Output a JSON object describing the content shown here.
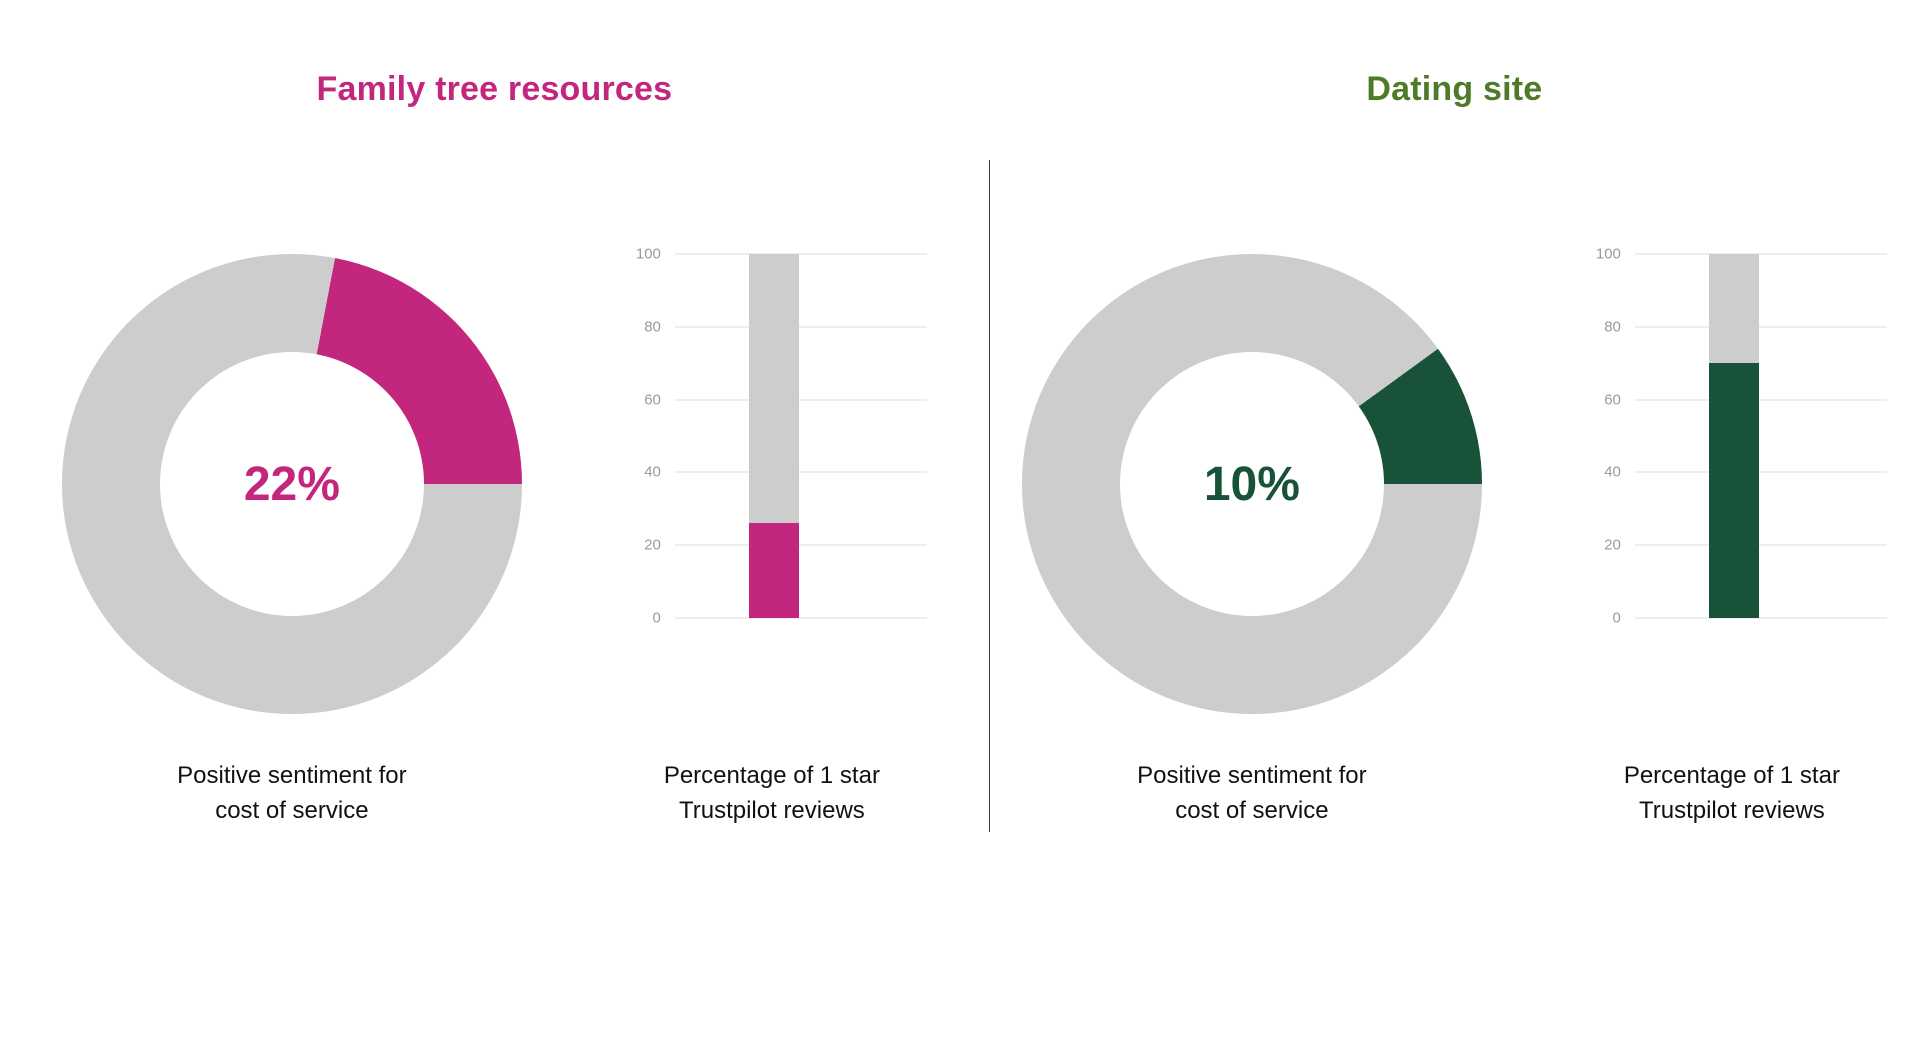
{
  "layout": {
    "background": "#ffffff",
    "divider_color": "#3d3d3d",
    "gridline_color": "#dcdcdc",
    "tick_label_color": "#9a9a9a",
    "caption_color": "#111111",
    "track_color": "#cdcdcd"
  },
  "panels": [
    {
      "title": "Family tree resources",
      "title_color": "#c2277d"
    },
    {
      "title": "Dating site",
      "title_color": "#4f7a28"
    }
  ],
  "chart_data": [
    {
      "type": "pie",
      "variant": "donut",
      "group": "Family tree resources",
      "caption_lines": [
        "Positive sentiment for",
        "cost of service"
      ],
      "center_label": "22%",
      "labels": [
        "Positive sentiment",
        "Remainder"
      ],
      "values": [
        22,
        78
      ],
      "colors": [
        "#c2277d",
        "#cdcdcd"
      ]
    },
    {
      "type": "bar",
      "group": "Family tree resources",
      "caption_lines": [
        "Percentage of 1 star",
        "Trustpilot reviews"
      ],
      "categories": [
        "1 star Trustpilot reviews"
      ],
      "values": [
        26
      ],
      "ylim": [
        0,
        100
      ],
      "yticks": [
        0,
        20,
        40,
        60,
        80,
        100
      ],
      "grid": true,
      "bar_color": "#c2277d",
      "track_color": "#cdcdcd"
    },
    {
      "type": "pie",
      "variant": "donut",
      "group": "Dating site",
      "caption_lines": [
        "Positive sentiment for",
        "cost of service"
      ],
      "center_label": "10%",
      "labels": [
        "Positive sentiment",
        "Remainder"
      ],
      "values": [
        10,
        90
      ],
      "colors": [
        "#175239",
        "#cdcdcd"
      ]
    },
    {
      "type": "bar",
      "group": "Dating site",
      "caption_lines": [
        "Percentage of 1 star",
        "Trustpilot reviews"
      ],
      "categories": [
        "1 star Trustpilot reviews"
      ],
      "values": [
        70
      ],
      "ylim": [
        0,
        100
      ],
      "yticks": [
        0,
        20,
        40,
        60,
        80,
        100
      ],
      "grid": true,
      "bar_color": "#175239",
      "track_color": "#cdcdcd"
    }
  ]
}
